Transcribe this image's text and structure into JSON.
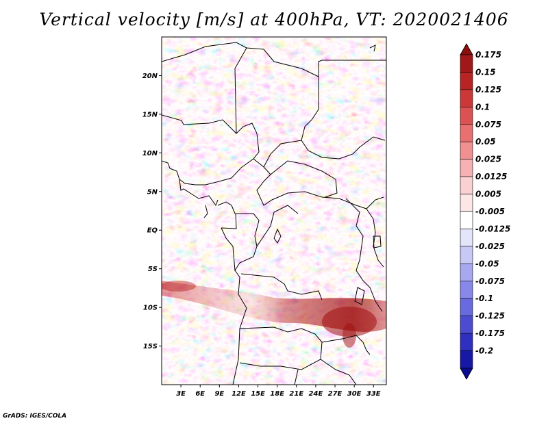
{
  "title": "Vertical velocity [m/s] at 400hPa, VT: 2020021406",
  "credit": "GrADS: IGES/COLA",
  "map": {
    "variable": "Vertical velocity",
    "units": "m/s",
    "level": "400hPa",
    "valid_time": "2020021406",
    "lon_range": [
      0,
      35
    ],
    "lat_range": [
      -20,
      25
    ],
    "lat_ticks": [
      {
        "value": 20,
        "label": "20N"
      },
      {
        "value": 15,
        "label": "15N"
      },
      {
        "value": 10,
        "label": "10N"
      },
      {
        "value": 5,
        "label": "5N"
      },
      {
        "value": 0,
        "label": "EQ"
      },
      {
        "value": -5,
        "label": "5S"
      },
      {
        "value": -10,
        "label": "10S"
      },
      {
        "value": -15,
        "label": "15S"
      }
    ],
    "lon_ticks": [
      {
        "value": 3,
        "label": "3E"
      },
      {
        "value": 6,
        "label": "6E"
      },
      {
        "value": 9,
        "label": "9E"
      },
      {
        "value": 12,
        "label": "12E"
      },
      {
        "value": 15,
        "label": "15E"
      },
      {
        "value": 18,
        "label": "18E"
      },
      {
        "value": 21,
        "label": "21E"
      },
      {
        "value": 24,
        "label": "24E"
      },
      {
        "value": 27,
        "label": "27E"
      },
      {
        "value": 30,
        "label": "30E"
      },
      {
        "value": 33,
        "label": "33E"
      }
    ]
  },
  "colorbar": {
    "levels": [
      {
        "label": "0.175",
        "color": "#a01818"
      },
      {
        "label": "0.15",
        "color": "#b82424"
      },
      {
        "label": "0.125",
        "color": "#cc3838"
      },
      {
        "label": "0.1",
        "color": "#dc5252"
      },
      {
        "label": "0.075",
        "color": "#e87070"
      },
      {
        "label": "0.05",
        "color": "#f09090"
      },
      {
        "label": "0.025",
        "color": "#f6b2b2"
      },
      {
        "label": "0.0125",
        "color": "#fad0d0"
      },
      {
        "label": "0.005",
        "color": "#fce6e6"
      },
      {
        "label": "-0.005",
        "color": "#ffffff"
      },
      {
        "label": "-0.0125",
        "color": "#e4e4fa"
      },
      {
        "label": "-0.025",
        "color": "#c8c8f6"
      },
      {
        "label": "-0.05",
        "color": "#a8a8f0"
      },
      {
        "label": "-0.075",
        "color": "#8888ea"
      },
      {
        "label": "-0.1",
        "color": "#6a6ae0"
      },
      {
        "label": "-0.125",
        "color": "#4c4cd2"
      },
      {
        "label": "-0.175",
        "color": "#3030c0"
      },
      {
        "label": "-0.2",
        "color": "#1818a6"
      }
    ],
    "top_arrow_color": "#8a1010",
    "bottom_arrow_color": "#0c0c90"
  }
}
